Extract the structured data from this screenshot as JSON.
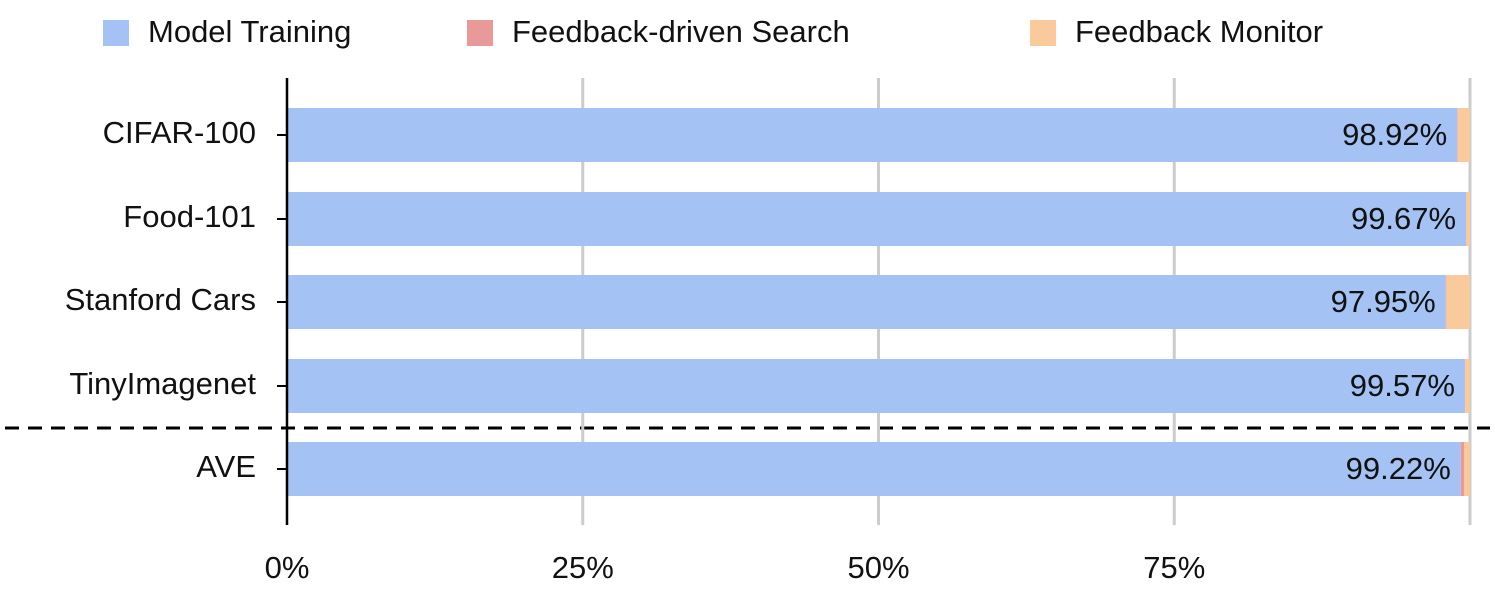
{
  "chart_data": {
    "type": "stacked-barh",
    "categories": [
      "CIFAR-100",
      "Food-101",
      "Stanford Cars",
      "TinyImagenet",
      "AVE"
    ],
    "series": [
      {
        "name": "Model Training",
        "color": "#a4c2f4",
        "values": [
          98.92,
          99.67,
          97.95,
          99.57,
          99.22
        ],
        "value_labels": [
          "98.92%",
          "99.67%",
          "97.95%",
          "99.57%",
          "99.22%"
        ]
      },
      {
        "name": "Feedback-driven Search",
        "color": "#ea9999",
        "values": [
          0.05,
          0.02,
          0.05,
          0.03,
          0.3
        ]
      },
      {
        "name": "Feedback Monitor",
        "color": "#f9cb9c",
        "values": [
          1.03,
          0.31,
          2.0,
          0.4,
          0.48
        ]
      }
    ],
    "xlim": [
      0,
      100
    ],
    "xticks": [
      {
        "value": 0,
        "label": "0%"
      },
      {
        "value": 25,
        "label": "25%"
      },
      {
        "value": 50,
        "label": "50%"
      },
      {
        "value": 75,
        "label": "75%"
      }
    ],
    "grid": true
  }
}
